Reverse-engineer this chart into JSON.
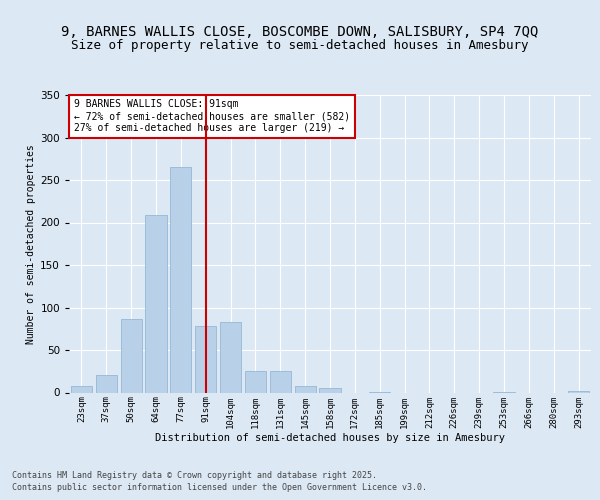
{
  "title1": "9, BARNES WALLIS CLOSE, BOSCOMBE DOWN, SALISBURY, SP4 7QQ",
  "title2": "Size of property relative to semi-detached houses in Amesbury",
  "xlabel": "Distribution of semi-detached houses by size in Amesbury",
  "ylabel": "Number of semi-detached properties",
  "categories": [
    "23sqm",
    "37sqm",
    "50sqm",
    "64sqm",
    "77sqm",
    "91sqm",
    "104sqm",
    "118sqm",
    "131sqm",
    "145sqm",
    "158sqm",
    "172sqm",
    "185sqm",
    "199sqm",
    "212sqm",
    "226sqm",
    "239sqm",
    "253sqm",
    "266sqm",
    "280sqm",
    "293sqm"
  ],
  "values": [
    8,
    21,
    87,
    209,
    265,
    78,
    83,
    25,
    25,
    8,
    5,
    0,
    1,
    0,
    0,
    0,
    0,
    1,
    0,
    0,
    2
  ],
  "bar_color": "#b8d0e8",
  "bar_edge_color": "#8ab0d0",
  "property_line_x": 5,
  "annotation_title": "9 BARNES WALLIS CLOSE: 91sqm",
  "annotation_line1": "← 72% of semi-detached houses are smaller (582)",
  "annotation_line2": "27% of semi-detached houses are larger (219) →",
  "annotation_box_color": "#ffffff",
  "annotation_box_edge": "#cc0000",
  "vline_color": "#cc0000",
  "footer1": "Contains HM Land Registry data © Crown copyright and database right 2025.",
  "footer2": "Contains public sector information licensed under the Open Government Licence v3.0.",
  "ylim": [
    0,
    350
  ],
  "bg_color": "#dce8f4",
  "plot_bg": "#dce8f4",
  "title1_fontsize": 10,
  "title2_fontsize": 9,
  "grid_color": "#ffffff"
}
